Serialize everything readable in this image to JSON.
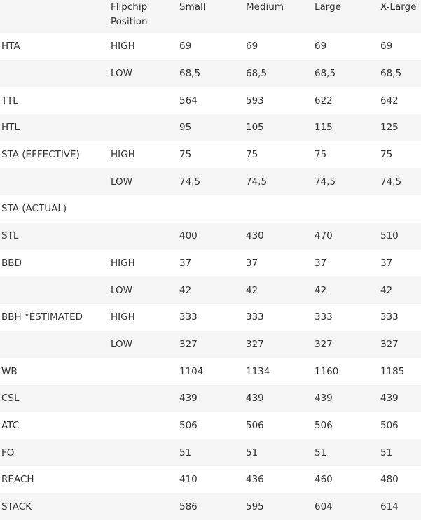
{
  "headers": [
    "",
    "Flipchip Position",
    "Small",
    "Medium",
    "Large",
    "X-Large"
  ],
  "rows": [
    [
      "HTA",
      "HIGH",
      "69",
      "69",
      "69",
      "69"
    ],
    [
      "",
      "LOW",
      "68,5",
      "68,5",
      "68,5",
      "68,5"
    ],
    [
      "TTL",
      "",
      "564",
      "593",
      "622",
      "642"
    ],
    [
      "HTL",
      "",
      "95",
      "105",
      "115",
      "125"
    ],
    [
      "STA (EFFECTIVE)",
      "HIGH",
      "75",
      "75",
      "75",
      "75"
    ],
    [
      "",
      "LOW",
      "74,5",
      "74,5",
      "74,5",
      "74,5"
    ],
    [
      "STA (ACTUAL)",
      "",
      "",
      "",
      "",
      ""
    ],
    [
      "STL",
      "",
      "400",
      "430",
      "470",
      "510"
    ],
    [
      "BBD",
      "HIGH",
      "37",
      "37",
      "37",
      "37"
    ],
    [
      "",
      "LOW",
      "42",
      "42",
      "42",
      "42"
    ],
    [
      "BBH *ESTIMATED",
      "HIGH",
      "333",
      "333",
      "333",
      "333"
    ],
    [
      "",
      "LOW",
      "327",
      "327",
      "327",
      "327"
    ],
    [
      "WB",
      "",
      "1104",
      "1134",
      "1160",
      "1185"
    ],
    [
      "CSL",
      "",
      "439",
      "439",
      "439",
      "439"
    ],
    [
      "ATC",
      "",
      "506",
      "506",
      "506",
      "506"
    ],
    [
      "FO",
      "",
      "51",
      "51",
      "51",
      "51"
    ],
    [
      "REACH",
      "",
      "410",
      "436",
      "460",
      "480"
    ],
    [
      "STACK",
      "",
      "586",
      "595",
      "604",
      "614"
    ]
  ]
}
